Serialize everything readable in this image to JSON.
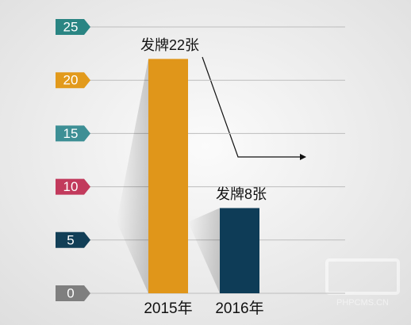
{
  "chart_data": {
    "type": "bar",
    "categories": [
      "2015年",
      "2016年"
    ],
    "values": [
      22,
      8
    ],
    "value_labels": [
      "发牌22张",
      "发牌8张"
    ],
    "colors": [
      "#e0961a",
      "#0e3c57"
    ],
    "ylim": [
      0,
      25
    ],
    "yticks": [
      0,
      5,
      10,
      15,
      20,
      25
    ],
    "ytick_colors": [
      "#7f7f7f",
      "#123f57",
      "#c23a5c",
      "#3d8f95",
      "#e29a1c",
      "#2a8583"
    ],
    "grid": true,
    "watermark": "PHPCMS.CN"
  }
}
